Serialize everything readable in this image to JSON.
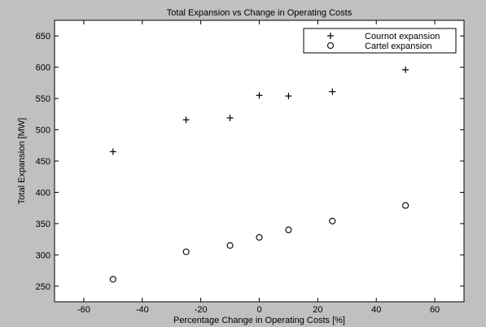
{
  "chart_data": {
    "type": "scatter",
    "title": "Total Expansion vs Change in Operating Costs",
    "xlabel": "Percentage Change in Operating Costs [%]",
    "ylabel": "Total Expansion [MW]",
    "xlim": [
      -70,
      70
    ],
    "ylim": [
      225,
      675
    ],
    "xticks": [
      -60,
      -40,
      -20,
      0,
      20,
      40,
      60
    ],
    "yticks": [
      250,
      300,
      350,
      400,
      450,
      500,
      550,
      600,
      650
    ],
    "xtick_labels": [
      "-60",
      "-40",
      "-20",
      "0",
      "20",
      "40",
      "60"
    ],
    "ytick_labels": [
      "250",
      "300",
      "350",
      "400",
      "450",
      "500",
      "550",
      "600",
      "650"
    ],
    "grid": false,
    "legend_position": "top-right",
    "series": [
      {
        "name": "Cournot expansion",
        "marker": "plus",
        "x": [
          -50,
          -25,
          -10,
          0,
          10,
          25,
          50
        ],
        "y": [
          465,
          516,
          519,
          555,
          554,
          561,
          596
        ]
      },
      {
        "name": "Cartel expansion",
        "marker": "circle",
        "x": [
          -50,
          -25,
          -10,
          0,
          10,
          25,
          50
        ],
        "y": [
          261,
          305,
          315,
          328,
          340,
          354,
          379
        ]
      }
    ],
    "colors": {
      "background": "#ffffff",
      "frame_outer": "#c0c0c0",
      "ink": "#000000"
    }
  }
}
